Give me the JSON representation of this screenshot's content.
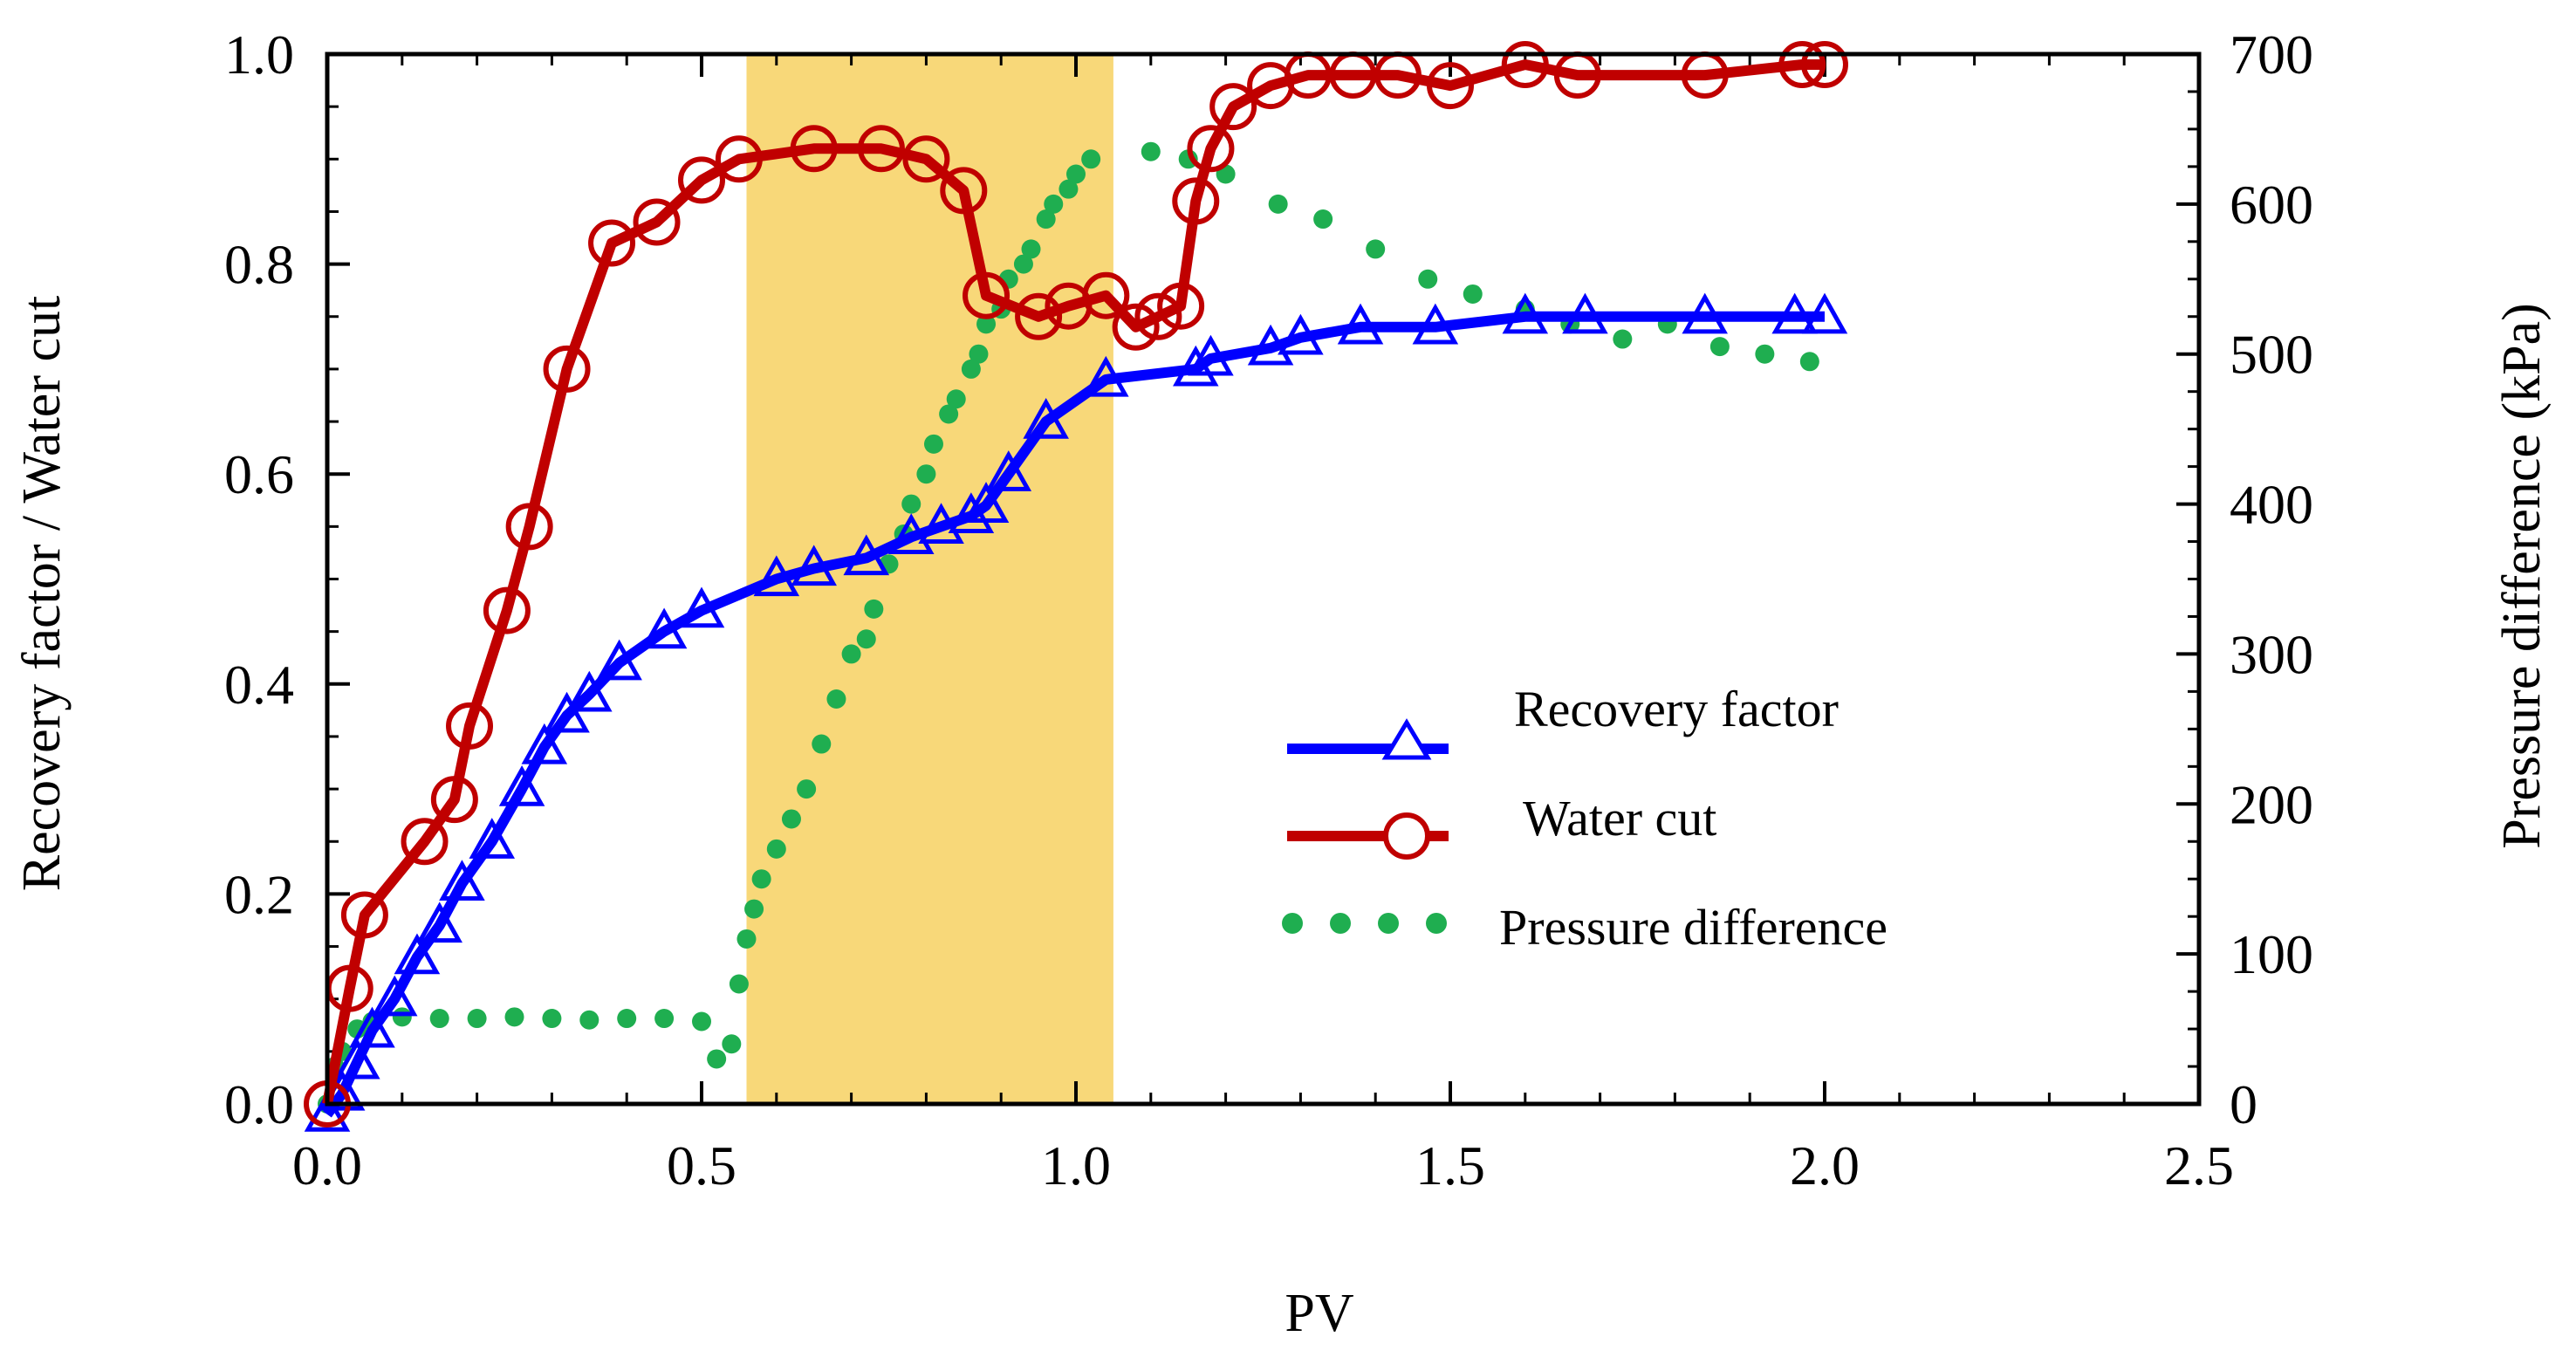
{
  "chart_data": {
    "type": "line",
    "title": "",
    "xlabel": "PV",
    "ylabel": "Recovery factor / Water cut",
    "y2label": "Pressure difference (kPa)",
    "xlim": [
      0.0,
      2.5
    ],
    "ylim": [
      0.0,
      1.0
    ],
    "y2lim": [
      0,
      700
    ],
    "x_ticks": [
      "0.0",
      "0.5",
      "1.0",
      "1.5",
      "2.0",
      "2.5"
    ],
    "y_ticks": [
      "0.0",
      "0.2",
      "0.4",
      "0.6",
      "0.8",
      "1.0"
    ],
    "y2_ticks": [
      "0",
      "100",
      "200",
      "300",
      "400",
      "500",
      "600",
      "700"
    ],
    "grid": false,
    "legend_position": "center-right",
    "highlight": {
      "x_range": [
        0.56,
        1.05
      ],
      "color": "#f8d879"
    },
    "series": [
      {
        "name": "Recovery factor",
        "axis": "left",
        "marker": "triangle",
        "color": "#0000ff",
        "x": [
          0.0,
          0.02,
          0.04,
          0.06,
          0.09,
          0.12,
          0.15,
          0.18,
          0.22,
          0.26,
          0.29,
          0.32,
          0.35,
          0.39,
          0.45,
          0.5,
          0.6,
          0.65,
          0.72,
          0.78,
          0.82,
          0.86,
          0.88,
          0.91,
          0.96,
          1.04,
          1.16,
          1.18,
          1.26,
          1.3,
          1.38,
          1.48,
          1.6,
          1.68,
          1.84,
          1.96,
          2.0
        ],
        "y": [
          -0.01,
          0.01,
          0.04,
          0.07,
          0.1,
          0.14,
          0.17,
          0.21,
          0.25,
          0.3,
          0.34,
          0.37,
          0.39,
          0.42,
          0.45,
          0.47,
          0.5,
          0.51,
          0.52,
          0.54,
          0.55,
          0.56,
          0.57,
          0.6,
          0.65,
          0.69,
          0.7,
          0.71,
          0.72,
          0.73,
          0.74,
          0.74,
          0.75,
          0.75,
          0.75,
          0.75,
          0.75
        ]
      },
      {
        "name": "Water cut",
        "axis": "left",
        "marker": "circle",
        "color": "#c00000",
        "x": [
          0.0,
          0.03,
          0.05,
          0.13,
          0.17,
          0.19,
          0.24,
          0.27,
          0.32,
          0.38,
          0.44,
          0.5,
          0.55,
          0.65,
          0.74,
          0.8,
          0.85,
          0.88,
          0.95,
          0.99,
          1.04,
          1.08,
          1.11,
          1.14,
          1.16,
          1.18,
          1.21,
          1.26,
          1.31,
          1.37,
          1.43,
          1.5,
          1.6,
          1.67,
          1.84,
          1.97,
          2.0
        ],
        "y": [
          0.0,
          0.11,
          0.18,
          0.25,
          0.29,
          0.36,
          0.47,
          0.55,
          0.7,
          0.82,
          0.84,
          0.88,
          0.9,
          0.91,
          0.91,
          0.9,
          0.87,
          0.77,
          0.75,
          0.76,
          0.77,
          0.74,
          0.75,
          0.76,
          0.86,
          0.91,
          0.95,
          0.97,
          0.98,
          0.98,
          0.98,
          0.97,
          0.99,
          0.98,
          0.98,
          0.99,
          0.99
        ]
      },
      {
        "name": "Pressure difference",
        "axis": "right",
        "marker": "dot",
        "color": "#1fae50",
        "x": [
          0.0,
          0.01,
          0.02,
          0.04,
          0.06,
          0.1,
          0.15,
          0.2,
          0.25,
          0.3,
          0.35,
          0.4,
          0.45,
          0.5,
          0.52,
          0.54,
          0.55,
          0.56,
          0.57,
          0.58,
          0.6,
          0.62,
          0.64,
          0.66,
          0.68,
          0.7,
          0.72,
          0.73,
          0.75,
          0.77,
          0.78,
          0.8,
          0.81,
          0.83,
          0.84,
          0.86,
          0.87,
          0.88,
          0.9,
          0.91,
          0.93,
          0.94,
          0.96,
          0.97,
          0.99,
          1.0,
          1.02,
          1.1,
          1.15,
          1.2,
          1.27,
          1.33,
          1.4,
          1.47,
          1.53,
          1.6,
          1.66,
          1.73,
          1.79,
          1.86,
          1.92,
          1.98
        ],
        "y": [
          0,
          25,
          35,
          50,
          55,
          58,
          57,
          57,
          58,
          57,
          56,
          57,
          57,
          55,
          30,
          40,
          80,
          110,
          130,
          150,
          170,
          190,
          210,
          240,
          270,
          300,
          310,
          330,
          360,
          380,
          400,
          420,
          440,
          460,
          470,
          490,
          500,
          520,
          530,
          550,
          560,
          570,
          590,
          600,
          610,
          620,
          630,
          635,
          630,
          620,
          600,
          590,
          570,
          550,
          540,
          530,
          520,
          510,
          520,
          505,
          500,
          495
        ]
      }
    ]
  }
}
